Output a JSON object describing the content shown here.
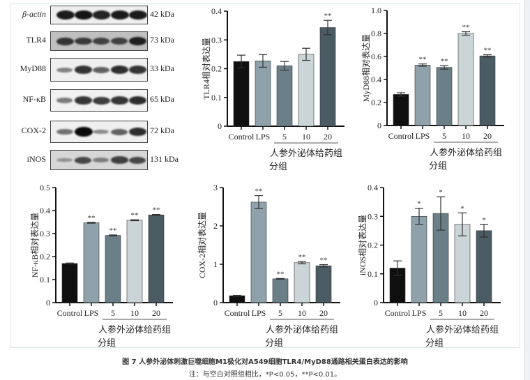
{
  "blot": {
    "rows": [
      {
        "label": "β-actin",
        "kda": "42 kDa",
        "intensity": [
          0.9,
          0.95,
          0.85,
          0.9,
          0.9
        ],
        "bg": 0.05
      },
      {
        "label": "TLR4",
        "kda": "73 kDa",
        "intensity": [
          0.7,
          0.65,
          0.6,
          0.6,
          0.85
        ],
        "bg": 0.45
      },
      {
        "label": "MyD88",
        "kda": "33 kDa",
        "intensity": [
          0.3,
          0.75,
          0.5,
          0.8,
          0.75
        ],
        "bg": 0.05
      },
      {
        "label": "NF-κB",
        "kda": "65 kDa",
        "intensity": [
          0.35,
          0.75,
          0.7,
          0.75,
          0.8
        ],
        "bg": 0.03
      },
      {
        "label": "COX-2",
        "kda": "72 kDa",
        "intensity": [
          0.4,
          1.0,
          0.25,
          0.5,
          0.8
        ],
        "bg": 0.05
      },
      {
        "label": "iNOS",
        "kda": "131 kDa",
        "intensity": [
          0.15,
          0.6,
          0.25,
          0.65,
          0.6
        ],
        "bg": 0.25
      }
    ]
  },
  "bar_colors": [
    "#0f0f0f",
    "#8fa1ab",
    "#6b7f89",
    "#cbd5d8",
    "#4b5b63"
  ],
  "chart_data": [
    {
      "type": "bar",
      "ylabel": "TLR4相对表达量",
      "categories": [
        "Control",
        "LPS",
        "5",
        "10",
        "20"
      ],
      "values": [
        0.225,
        0.227,
        0.21,
        0.25,
        0.343
      ],
      "errors": [
        0.022,
        0.022,
        0.015,
        0.021,
        0.025
      ],
      "sig": [
        "",
        "",
        "",
        "",
        "**"
      ],
      "ylim": [
        0,
        0.4
      ],
      "yticks": [
        "0",
        "0.1",
        "0.2",
        "0.3",
        "0.4"
      ],
      "group_label": "人参外泌体给药组",
      "xlabel": "分组"
    },
    {
      "type": "bar",
      "ylabel": "MyD88相对表达量",
      "categories": [
        "Control",
        "LPS",
        "5",
        "10",
        "20"
      ],
      "values": [
        0.27,
        0.525,
        0.505,
        0.8,
        0.605
      ],
      "errors": [
        0.015,
        0.01,
        0.015,
        0.015,
        0.01
      ],
      "sig": [
        "",
        "**",
        "**",
        "**",
        "**"
      ],
      "ylim": [
        0,
        1.0
      ],
      "yticks": [
        "0",
        "0.2",
        "0.4",
        "0.6",
        "0.8",
        "1.0"
      ],
      "group_label": "人参外泌体给药组",
      "xlabel": "分组"
    },
    {
      "type": "bar",
      "ylabel": "NF-κB相对表达量",
      "categories": [
        "Control",
        "LPS",
        "5",
        "10",
        "20"
      ],
      "values": [
        0.17,
        0.347,
        0.292,
        0.358,
        0.381
      ],
      "errors": [
        0.002,
        0.002,
        0.002,
        0.002,
        0.002
      ],
      "sig": [
        "",
        "**",
        "**",
        "**",
        "**"
      ],
      "ylim": [
        0,
        0.5
      ],
      "yticks": [
        "0",
        "0.1",
        "0.2",
        "0.3",
        "0.4",
        "0.5"
      ],
      "group_label": "人参外泌体给药组",
      "xlabel": "分组"
    },
    {
      "type": "bar",
      "ylabel": "COX-2相对表达量",
      "categories": [
        "Control",
        "LPS",
        "5",
        "10",
        "20"
      ],
      "values": [
        0.18,
        2.62,
        0.62,
        1.04,
        0.96
      ],
      "errors": [
        0.01,
        0.17,
        0.01,
        0.03,
        0.03
      ],
      "sig": [
        "",
        "**",
        "**",
        "**",
        "**"
      ],
      "ylim": [
        0,
        3
      ],
      "yticks": [
        "0",
        "1",
        "2",
        "3"
      ],
      "group_label": "人参外泌体给药组",
      "xlabel": "分组"
    },
    {
      "type": "bar",
      "ylabel": "iNOS相对表达量",
      "categories": [
        "Control",
        "LPS",
        "5",
        "10",
        "20"
      ],
      "values": [
        0.12,
        0.3,
        0.31,
        0.272,
        0.25
      ],
      "errors": [
        0.025,
        0.028,
        0.058,
        0.04,
        0.022
      ],
      "sig": [
        "",
        "*",
        "*",
        "*",
        "*"
      ],
      "ylim": [
        0,
        0.4
      ],
      "yticks": [
        "0",
        "0.1",
        "0.2",
        "0.3",
        "0.4"
      ],
      "group_label": "人参外泌体给药组",
      "xlabel": "分组"
    }
  ],
  "caption": {
    "title": "图 7 人参外泌体刺激巨噬细胞M1极化对A549细胞TLR4/MyD88通路相关蛋白表达的影响",
    "note": "注：与空白对照组相比，*P<0.05，**P<0.01。"
  }
}
